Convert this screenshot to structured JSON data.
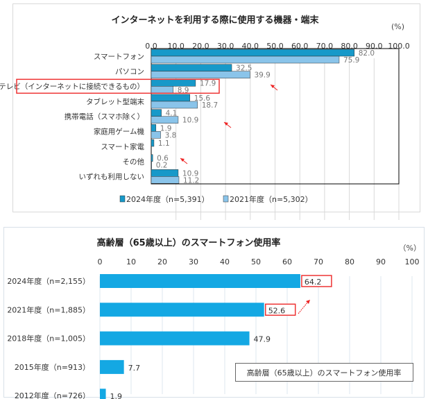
{
  "chart_data": [
    {
      "type": "bar",
      "title": "インターネットを利用する際に使用する機器・端末",
      "unit_label": "(%)",
      "xlim": [
        0,
        100
      ],
      "ticks": [
        "0.0",
        "10.0",
        "20.0",
        "30.0",
        "40.0",
        "50.0",
        "60.0",
        "70.0",
        "80.0",
        "90.0",
        "100.0"
      ],
      "categories": [
        "スマートフォン",
        "パソコン",
        "テレビ（インターネットに接続できるもの）",
        "タブレット型端末",
        "携帯電話（スマホ除く）",
        "家庭用ゲーム機",
        "スマート家電",
        "その他",
        "いずれも利用しない"
      ],
      "series": [
        {
          "name": "2024年度（n=5,391）",
          "color": "#1799c9",
          "values": [
            82.0,
            32.5,
            17.9,
            15.6,
            4.1,
            1.9,
            1.1,
            0.6,
            10.9
          ],
          "labels": [
            "82.0",
            "32.5",
            "17.9",
            "15.6",
            "4.1",
            "1.9",
            "1.1",
            "0.6",
            "10.9"
          ]
        },
        {
          "name": "2021年度（n=5,302）",
          "color": "#8ac4ea",
          "values": [
            75.9,
            39.9,
            8.9,
            18.7,
            10.9,
            3.8,
            null,
            0.2,
            11.2
          ],
          "labels": [
            "75.9",
            "39.9",
            "8.9",
            "18.7",
            "10.9",
            "3.8",
            "",
            "0.2",
            "11.2"
          ]
        }
      ],
      "highlight_category": "テレビ（インターネットに接続できるもの）",
      "legend": "bottom"
    },
    {
      "type": "bar",
      "title": "高齢層（65歳以上）のスマートフォン使用率",
      "unit_label": "（%）",
      "xlim": [
        0,
        100
      ],
      "ticks": [
        "0",
        "10",
        "20",
        "30",
        "40",
        "50",
        "60",
        "70",
        "80",
        "90",
        "100"
      ],
      "categories": [
        "2024年度（n=2,155）",
        "2021年度（n=1,885）",
        "2018年度（n=1,005）",
        "2015年度（n=913）",
        "2012年度（n=726）"
      ],
      "series": [
        {
          "name": "高齢層（65歳以上）のスマートフォン使用率",
          "color": "#14a8e3",
          "values": [
            64.2,
            52.6,
            47.9,
            7.7,
            1.9
          ],
          "labels": [
            "64.2",
            "52.6",
            "47.9",
            "7.7",
            "1.9"
          ]
        }
      ],
      "highlighted_labels": [
        "64.2",
        "52.6"
      ],
      "legend": "bottom-right"
    }
  ]
}
